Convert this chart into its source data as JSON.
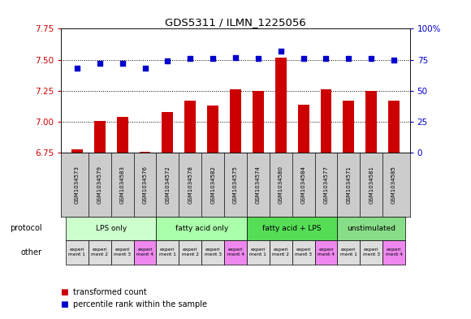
{
  "title": "GDS5311 / ILMN_1225056",
  "samples": [
    "GSM1034573",
    "GSM1034579",
    "GSM1034583",
    "GSM1034576",
    "GSM1034572",
    "GSM1034578",
    "GSM1034582",
    "GSM1034575",
    "GSM1034574",
    "GSM1034580",
    "GSM1034584",
    "GSM1034577",
    "GSM1034571",
    "GSM1034581",
    "GSM1034585"
  ],
  "transformed_count": [
    6.78,
    7.01,
    7.04,
    6.76,
    7.08,
    7.17,
    7.13,
    7.26,
    7.25,
    7.52,
    7.14,
    7.26,
    7.17,
    7.25,
    7.17
  ],
  "percentile_rank": [
    68,
    72,
    72,
    68,
    74,
    76,
    76,
    77,
    76,
    82,
    76,
    76,
    76,
    76,
    75
  ],
  "ylim_left": [
    6.75,
    7.75
  ],
  "ylim_right": [
    0,
    100
  ],
  "yticks_left": [
    6.75,
    7.0,
    7.25,
    7.5,
    7.75
  ],
  "yticks_right": [
    0,
    25,
    50,
    75,
    100
  ],
  "bar_color": "#cc0000",
  "dot_color": "#0000cc",
  "protocol_groups": [
    {
      "label": "LPS only",
      "indices": [
        0,
        1,
        2,
        3
      ],
      "color": "#ccffcc"
    },
    {
      "label": "fatty acid only",
      "indices": [
        4,
        5,
        6,
        7
      ],
      "color": "#aaffaa"
    },
    {
      "label": "fatty acid + LPS",
      "indices": [
        8,
        9,
        10,
        11
      ],
      "color": "#55dd55"
    },
    {
      "label": "unstimulated",
      "indices": [
        12,
        13,
        14
      ],
      "color": "#88dd88"
    }
  ],
  "other_labels": [
    "experi\nment 1",
    "experi\nment 2",
    "experi\nment 3",
    "experi\nment 4",
    "experi\nment 1",
    "experi\nment 2",
    "experi\nment 3",
    "experi\nment 4",
    "experi\nment 1",
    "experi\nment 2",
    "experi\nment 3",
    "experi\nment 4",
    "experi\nment 1",
    "experi\nment 3",
    "experi\nment 4"
  ],
  "other_colors": [
    "#dddddd",
    "#dddddd",
    "#dddddd",
    "#ee88ee",
    "#dddddd",
    "#dddddd",
    "#dddddd",
    "#ee88ee",
    "#dddddd",
    "#dddddd",
    "#dddddd",
    "#ee88ee",
    "#dddddd",
    "#dddddd",
    "#ee88ee"
  ],
  "legend_bar_label": "transformed count",
  "legend_dot_label": "percentile rank within the sample",
  "left_axis_color": "#cc0000",
  "right_axis_color": "#0000cc",
  "sample_bg_color": "#cccccc",
  "plot_bg_color": "#ffffff"
}
